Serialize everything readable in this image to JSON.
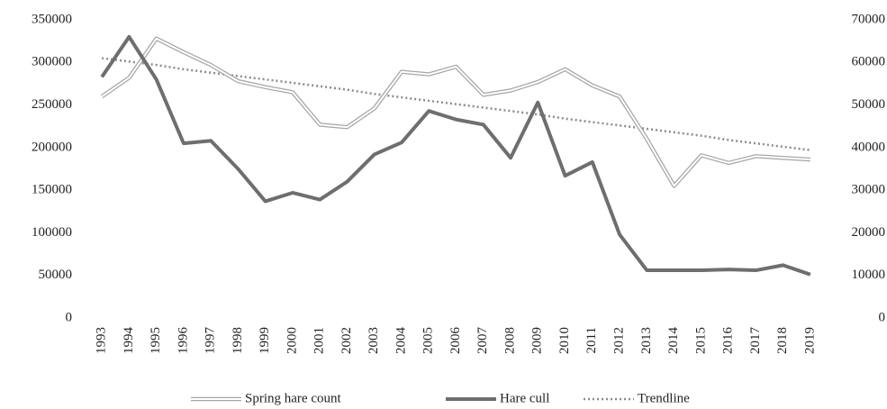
{
  "chart_data": {
    "type": "line",
    "categories": [
      "1993",
      "1994",
      "1995",
      "1996",
      "1997",
      "1998",
      "1999",
      "2000",
      "2001",
      "2002",
      "2003",
      "2004",
      "2005",
      "2006",
      "2007",
      "2008",
      "2009",
      "2010",
      "2011",
      "2012",
      "2013",
      "2014",
      "2015",
      "2016",
      "2017",
      "2018",
      "2019"
    ],
    "series": [
      {
        "name": "Spring hare count",
        "color": "#a6a6a6",
        "style": "double",
        "axis": "y",
        "values": [
          260000,
          282000,
          328000,
          312000,
          297000,
          278000,
          271000,
          265000,
          227000,
          224000,
          246000,
          289000,
          286000,
          295000,
          262000,
          267000,
          277000,
          292000,
          273000,
          260000,
          210000,
          155000,
          191000,
          182000,
          190000,
          188000,
          186000
        ]
      },
      {
        "name": "Hare cull",
        "color": "#6e6e6e",
        "style": "solid",
        "axis": "y2",
        "values": [
          56600,
          66000,
          56000,
          41000,
          41600,
          35000,
          27400,
          29400,
          27800,
          32000,
          38400,
          41200,
          48600,
          46600,
          45400,
          37600,
          50600,
          33400,
          36600,
          19600,
          11200,
          11200,
          11200,
          11400,
          11200,
          12400,
          10200
        ]
      },
      {
        "name": "Trendline",
        "color": "#8c8c8c",
        "style": "dotted",
        "axis": "y",
        "values": [
          305000,
          301000,
          297000,
          292000,
          288000,
          284000,
          280000,
          276000,
          272000,
          268000,
          263000,
          259000,
          255000,
          251000,
          247000,
          243000,
          239000,
          234000,
          230000,
          226000,
          222000,
          218000,
          214000,
          209000,
          205000,
          201000,
          197000
        ]
      }
    ],
    "ylim": [
      0,
      350000
    ],
    "yticks": [
      0,
      50000,
      100000,
      150000,
      200000,
      250000,
      300000,
      350000
    ],
    "y2lim": [
      0,
      70000
    ],
    "y2ticks": [
      0,
      10000,
      20000,
      30000,
      40000,
      50000,
      60000,
      70000
    ],
    "grid": false,
    "legend": "bottom"
  }
}
